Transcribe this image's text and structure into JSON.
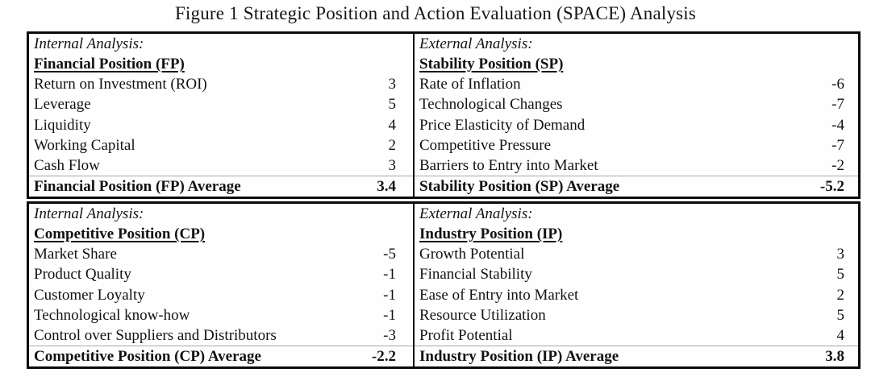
{
  "figure": {
    "title": "Figure 1 Strategic Position and Action Evaluation (SPACE) Analysis"
  },
  "quadrants": [
    {
      "analysis_label": "Internal Analysis:",
      "position_label": "Financial Position (FP)",
      "rows": [
        {
          "label": "Return on Investment (ROI)",
          "value": "3"
        },
        {
          "label": "Leverage",
          "value": "5"
        },
        {
          "label": "Liquidity",
          "value": "4"
        },
        {
          "label": "Working Capital",
          "value": "2"
        },
        {
          "label": "Cash Flow",
          "value": "3"
        }
      ],
      "average": {
        "label": "Financial Position (FP) Average",
        "value": "3.4"
      }
    },
    {
      "analysis_label": "External Analysis:",
      "position_label": "Stability Position (SP)",
      "rows": [
        {
          "label": "Rate of Inflation",
          "value": "-6"
        },
        {
          "label": "Technological Changes",
          "value": "-7"
        },
        {
          "label": "Price Elasticity of Demand",
          "value": "-4"
        },
        {
          "label": "Competitive Pressure",
          "value": "-7"
        },
        {
          "label": "Barriers to Entry into Market",
          "value": "-2"
        }
      ],
      "average": {
        "label": "Stability Position (SP) Average",
        "value": "-5.2"
      }
    },
    {
      "analysis_label": "Internal Analysis:",
      "position_label": "Competitive Position (CP)",
      "rows": [
        {
          "label": "Market Share",
          "value": "-5"
        },
        {
          "label": "Product Quality",
          "value": "-1"
        },
        {
          "label": "Customer Loyalty",
          "value": "-1"
        },
        {
          "label": "Technological know-how",
          "value": "-1"
        },
        {
          "label": "Control over Suppliers and Distributors",
          "value": "-3"
        }
      ],
      "average": {
        "label": "Competitive Position (CP) Average",
        "value": "-2.2"
      }
    },
    {
      "analysis_label": "External Analysis:",
      "position_label": "Industry Position (IP)",
      "rows": [
        {
          "label": "Growth Potential",
          "value": "3"
        },
        {
          "label": "Financial Stability",
          "value": "5"
        },
        {
          "label": "Ease of Entry into Market",
          "value": "2"
        },
        {
          "label": "Resource Utilization",
          "value": "5"
        },
        {
          "label": "Profit Potential",
          "value": "4"
        }
      ],
      "average": {
        "label": "Industry Position (IP) Average",
        "value": "3.8"
      }
    }
  ]
}
